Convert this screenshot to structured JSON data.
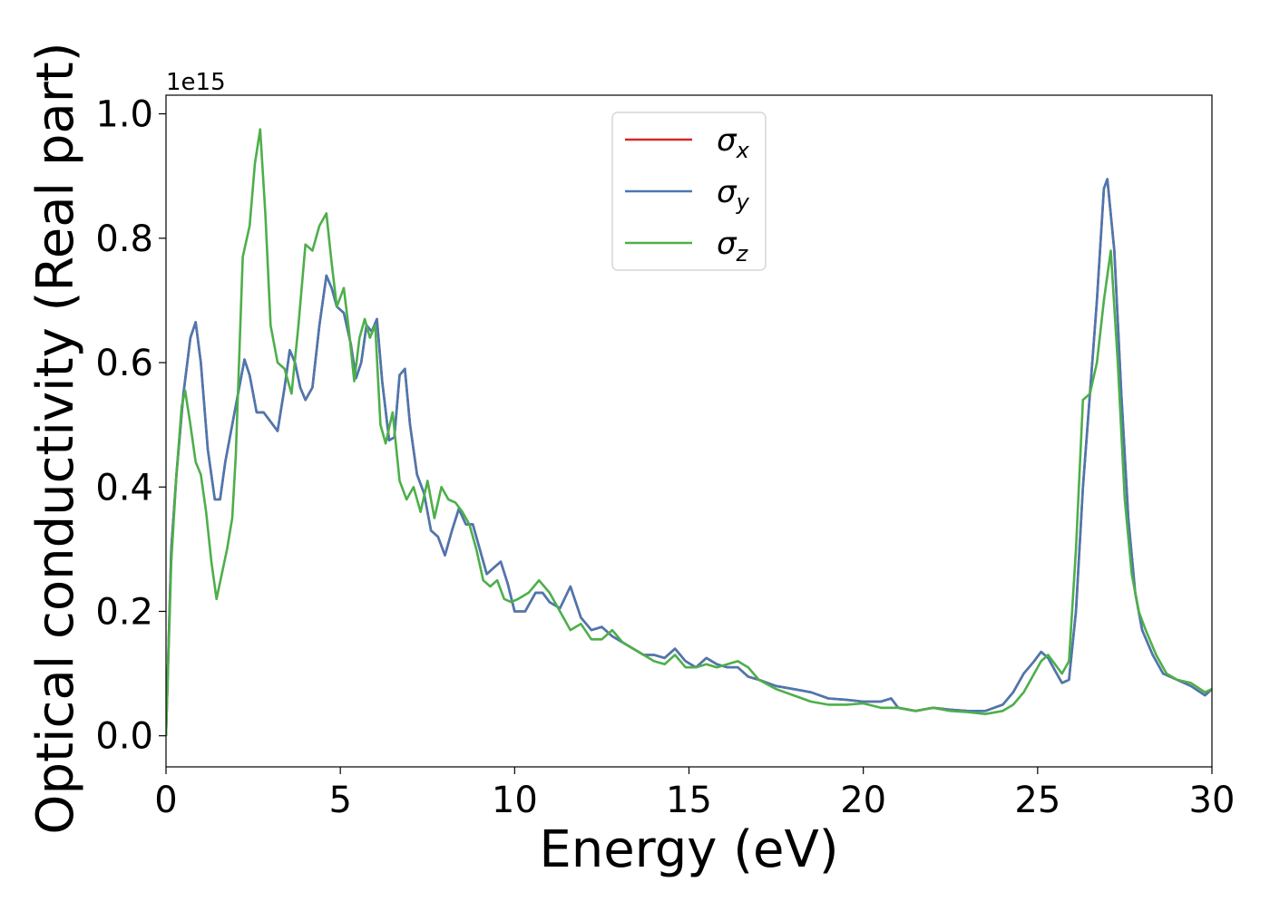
{
  "chart_data": {
    "type": "line",
    "xlabel": "Energy (eV)",
    "ylabel": "Optical conductivity (Real part)",
    "y_offset_text": "1e15",
    "xlim": [
      0,
      30
    ],
    "ylim": [
      -0.05,
      1.03
    ],
    "x_ticks": [
      "0",
      "5",
      "10",
      "15",
      "20",
      "25",
      "30"
    ],
    "y_ticks": [
      "0.0",
      "0.2",
      "0.4",
      "0.6",
      "0.8",
      "1.0"
    ],
    "grid": false,
    "legend_position": "upper center",
    "series": [
      {
        "name": "σx",
        "legend_base": "σ",
        "legend_sub": "x",
        "color": "#d62728",
        "x": [
          0,
          0.15,
          0.3,
          0.5,
          0.7,
          0.85,
          1.0,
          1.2,
          1.4,
          1.55,
          1.7,
          1.9,
          2.1,
          2.25,
          2.4,
          2.6,
          2.8,
          3.0,
          3.2,
          3.4,
          3.55,
          3.7,
          3.85,
          4.0,
          4.2,
          4.4,
          4.6,
          4.75,
          4.9,
          5.1,
          5.3,
          5.45,
          5.6,
          5.75,
          5.9,
          6.05,
          6.2,
          6.4,
          6.55,
          6.7,
          6.85,
          7.0,
          7.2,
          7.4,
          7.6,
          7.8,
          8.0,
          8.2,
          8.4,
          8.6,
          8.8,
          9.0,
          9.2,
          9.4,
          9.6,
          9.8,
          10.0,
          10.3,
          10.6,
          10.8,
          11.0,
          11.3,
          11.6,
          11.9,
          12.2,
          12.5,
          12.8,
          13.1,
          13.4,
          13.7,
          14.0,
          14.3,
          14.6,
          14.9,
          15.2,
          15.5,
          15.8,
          16.1,
          16.4,
          16.7,
          17.0,
          17.5,
          18.0,
          18.5,
          19.0,
          19.5,
          20.0,
          20.5,
          20.8,
          21.0,
          21.5,
          22.0,
          22.5,
          23.0,
          23.5,
          24.0,
          24.3,
          24.6,
          24.9,
          25.1,
          25.3,
          25.5,
          25.7,
          25.9,
          26.1,
          26.3,
          26.5,
          26.7,
          26.9,
          27.0,
          27.2,
          27.4,
          27.6,
          27.8,
          28.0,
          28.3,
          28.6,
          29.0,
          29.4,
          29.8,
          30.0
        ],
        "values": [
          0.0,
          0.3,
          0.42,
          0.55,
          0.64,
          0.665,
          0.6,
          0.46,
          0.38,
          0.38,
          0.44,
          0.5,
          0.56,
          0.605,
          0.58,
          0.52,
          0.52,
          0.505,
          0.49,
          0.56,
          0.62,
          0.6,
          0.56,
          0.54,
          0.56,
          0.66,
          0.74,
          0.72,
          0.69,
          0.68,
          0.63,
          0.575,
          0.6,
          0.66,
          0.65,
          0.67,
          0.57,
          0.475,
          0.48,
          0.58,
          0.59,
          0.5,
          0.42,
          0.39,
          0.33,
          0.32,
          0.29,
          0.33,
          0.365,
          0.34,
          0.34,
          0.3,
          0.26,
          0.27,
          0.28,
          0.245,
          0.2,
          0.2,
          0.23,
          0.23,
          0.215,
          0.205,
          0.24,
          0.19,
          0.17,
          0.175,
          0.16,
          0.15,
          0.14,
          0.13,
          0.13,
          0.125,
          0.14,
          0.12,
          0.11,
          0.125,
          0.115,
          0.11,
          0.11,
          0.095,
          0.09,
          0.08,
          0.075,
          0.07,
          0.06,
          0.058,
          0.055,
          0.055,
          0.06,
          0.045,
          0.04,
          0.045,
          0.042,
          0.04,
          0.04,
          0.05,
          0.07,
          0.1,
          0.12,
          0.135,
          0.125,
          0.105,
          0.085,
          0.09,
          0.2,
          0.4,
          0.55,
          0.7,
          0.88,
          0.895,
          0.78,
          0.55,
          0.35,
          0.23,
          0.17,
          0.13,
          0.1,
          0.09,
          0.08,
          0.065,
          0.075
        ]
      },
      {
        "name": "σy",
        "legend_base": "σ",
        "legend_sub": "y",
        "color": "#4a78b0",
        "x": [
          0,
          0.15,
          0.3,
          0.5,
          0.7,
          0.85,
          1.0,
          1.2,
          1.4,
          1.55,
          1.7,
          1.9,
          2.1,
          2.25,
          2.4,
          2.6,
          2.8,
          3.0,
          3.2,
          3.4,
          3.55,
          3.7,
          3.85,
          4.0,
          4.2,
          4.4,
          4.6,
          4.75,
          4.9,
          5.1,
          5.3,
          5.45,
          5.6,
          5.75,
          5.9,
          6.05,
          6.2,
          6.4,
          6.55,
          6.7,
          6.85,
          7.0,
          7.2,
          7.4,
          7.6,
          7.8,
          8.0,
          8.2,
          8.4,
          8.6,
          8.8,
          9.0,
          9.2,
          9.4,
          9.6,
          9.8,
          10.0,
          10.3,
          10.6,
          10.8,
          11.0,
          11.3,
          11.6,
          11.9,
          12.2,
          12.5,
          12.8,
          13.1,
          13.4,
          13.7,
          14.0,
          14.3,
          14.6,
          14.9,
          15.2,
          15.5,
          15.8,
          16.1,
          16.4,
          16.7,
          17.0,
          17.5,
          18.0,
          18.5,
          19.0,
          19.5,
          20.0,
          20.5,
          20.8,
          21.0,
          21.5,
          22.0,
          22.5,
          23.0,
          23.5,
          24.0,
          24.3,
          24.6,
          24.9,
          25.1,
          25.3,
          25.5,
          25.7,
          25.9,
          26.1,
          26.3,
          26.5,
          26.7,
          26.9,
          27.0,
          27.2,
          27.4,
          27.6,
          27.8,
          28.0,
          28.3,
          28.6,
          29.0,
          29.4,
          29.8,
          30.0
        ],
        "values": [
          0.0,
          0.3,
          0.42,
          0.55,
          0.64,
          0.665,
          0.6,
          0.46,
          0.38,
          0.38,
          0.44,
          0.5,
          0.56,
          0.605,
          0.58,
          0.52,
          0.52,
          0.505,
          0.49,
          0.56,
          0.62,
          0.6,
          0.56,
          0.54,
          0.56,
          0.66,
          0.74,
          0.72,
          0.69,
          0.68,
          0.63,
          0.575,
          0.6,
          0.66,
          0.65,
          0.67,
          0.57,
          0.475,
          0.48,
          0.58,
          0.59,
          0.5,
          0.42,
          0.39,
          0.33,
          0.32,
          0.29,
          0.33,
          0.365,
          0.34,
          0.34,
          0.3,
          0.26,
          0.27,
          0.28,
          0.245,
          0.2,
          0.2,
          0.23,
          0.23,
          0.215,
          0.205,
          0.24,
          0.19,
          0.17,
          0.175,
          0.16,
          0.15,
          0.14,
          0.13,
          0.13,
          0.125,
          0.14,
          0.12,
          0.11,
          0.125,
          0.115,
          0.11,
          0.11,
          0.095,
          0.09,
          0.08,
          0.075,
          0.07,
          0.06,
          0.058,
          0.055,
          0.055,
          0.06,
          0.045,
          0.04,
          0.045,
          0.042,
          0.04,
          0.04,
          0.05,
          0.07,
          0.1,
          0.12,
          0.135,
          0.125,
          0.105,
          0.085,
          0.09,
          0.2,
          0.4,
          0.55,
          0.7,
          0.88,
          0.895,
          0.78,
          0.55,
          0.35,
          0.23,
          0.17,
          0.13,
          0.1,
          0.09,
          0.08,
          0.065,
          0.075
        ]
      },
      {
        "name": "σz",
        "legend_base": "σ",
        "legend_sub": "z",
        "color": "#4daf4a",
        "x": [
          0,
          0.15,
          0.3,
          0.45,
          0.55,
          0.7,
          0.85,
          1.0,
          1.15,
          1.3,
          1.45,
          1.6,
          1.75,
          1.9,
          2.0,
          2.2,
          2.4,
          2.55,
          2.7,
          2.85,
          3.0,
          3.2,
          3.4,
          3.6,
          3.8,
          4.0,
          4.2,
          4.4,
          4.6,
          4.75,
          4.9,
          5.1,
          5.25,
          5.4,
          5.55,
          5.7,
          5.85,
          6.0,
          6.15,
          6.3,
          6.5,
          6.7,
          6.9,
          7.1,
          7.3,
          7.5,
          7.7,
          7.9,
          8.1,
          8.3,
          8.5,
          8.7,
          8.9,
          9.1,
          9.3,
          9.5,
          9.7,
          9.9,
          10.1,
          10.4,
          10.7,
          11.0,
          11.3,
          11.6,
          11.9,
          12.2,
          12.5,
          12.8,
          13.1,
          13.4,
          13.7,
          14.0,
          14.3,
          14.6,
          14.9,
          15.2,
          15.5,
          15.8,
          16.1,
          16.4,
          16.7,
          17.0,
          17.5,
          18.0,
          18.5,
          19.0,
          19.5,
          20.0,
          20.5,
          21.0,
          21.5,
          22.0,
          22.5,
          23.0,
          23.5,
          24.0,
          24.3,
          24.6,
          24.9,
          25.1,
          25.3,
          25.5,
          25.7,
          25.9,
          26.1,
          26.3,
          26.5,
          26.7,
          26.9,
          27.1,
          27.3,
          27.5,
          27.7,
          27.9,
          28.1,
          28.4,
          28.7,
          29.0,
          29.4,
          29.8,
          30.0
        ],
        "values": [
          0.0,
          0.28,
          0.42,
          0.53,
          0.555,
          0.5,
          0.44,
          0.42,
          0.36,
          0.28,
          0.22,
          0.26,
          0.3,
          0.35,
          0.45,
          0.77,
          0.82,
          0.92,
          0.975,
          0.84,
          0.66,
          0.6,
          0.59,
          0.55,
          0.66,
          0.79,
          0.78,
          0.82,
          0.84,
          0.76,
          0.69,
          0.72,
          0.65,
          0.57,
          0.64,
          0.67,
          0.64,
          0.66,
          0.5,
          0.47,
          0.52,
          0.41,
          0.38,
          0.4,
          0.36,
          0.41,
          0.35,
          0.4,
          0.38,
          0.375,
          0.36,
          0.34,
          0.3,
          0.25,
          0.24,
          0.25,
          0.22,
          0.215,
          0.22,
          0.23,
          0.25,
          0.23,
          0.2,
          0.17,
          0.18,
          0.155,
          0.155,
          0.17,
          0.15,
          0.14,
          0.13,
          0.12,
          0.115,
          0.13,
          0.11,
          0.11,
          0.115,
          0.11,
          0.115,
          0.12,
          0.11,
          0.09,
          0.075,
          0.065,
          0.055,
          0.05,
          0.05,
          0.052,
          0.045,
          0.045,
          0.04,
          0.045,
          0.04,
          0.038,
          0.035,
          0.04,
          0.05,
          0.07,
          0.1,
          0.12,
          0.13,
          0.115,
          0.1,
          0.12,
          0.3,
          0.54,
          0.55,
          0.6,
          0.7,
          0.78,
          0.6,
          0.38,
          0.26,
          0.2,
          0.17,
          0.13,
          0.1,
          0.09,
          0.085,
          0.07,
          0.075
        ]
      }
    ]
  }
}
